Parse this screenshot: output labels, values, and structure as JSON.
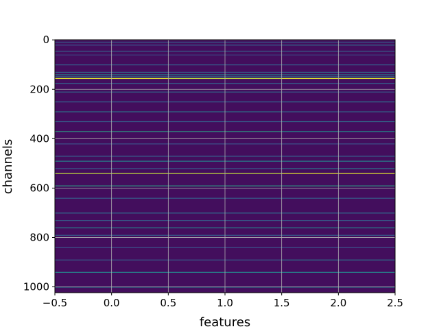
{
  "chart_data": {
    "type": "heatmap",
    "title": "",
    "xlabel": "features",
    "ylabel": "channels",
    "xlim": [
      -0.5,
      2.5
    ],
    "ylim": [
      1023.5,
      -0.5
    ],
    "y_inverted": true,
    "grid": true,
    "colormap": "viridis",
    "n_rows": 1024,
    "n_cols": 3,
    "x_ticks": [
      {
        "value": -0.5,
        "label": "−0.5"
      },
      {
        "value": 0.0,
        "label": "0.0"
      },
      {
        "value": 0.5,
        "label": "0.5"
      },
      {
        "value": 1.0,
        "label": "1.0"
      },
      {
        "value": 1.5,
        "label": "1.5"
      },
      {
        "value": 2.0,
        "label": "2.0"
      },
      {
        "value": 2.5,
        "label": "2.5"
      }
    ],
    "y_ticks": [
      {
        "value": 0,
        "label": "0"
      },
      {
        "value": 200,
        "label": "200"
      },
      {
        "value": 400,
        "label": "400"
      },
      {
        "value": 600,
        "label": "600"
      },
      {
        "value": 800,
        "label": "800"
      },
      {
        "value": 1000,
        "label": "1000"
      }
    ],
    "background_value": 0.04,
    "highlighted_rows": [
      {
        "row": 8,
        "values": [
          0.3,
          0.3,
          0.3
        ]
      },
      {
        "row": 20,
        "values": [
          0.25,
          0.3,
          0.35
        ]
      },
      {
        "row": 45,
        "values": [
          0.3,
          0.3,
          0.3
        ]
      },
      {
        "row": 60,
        "values": [
          0.2,
          0.2,
          0.2
        ]
      },
      {
        "row": 100,
        "values": [
          0.3,
          0.3,
          0.3
        ]
      },
      {
        "row": 130,
        "values": [
          0.35,
          0.3,
          0.35
        ]
      },
      {
        "row": 140,
        "values": [
          0.5,
          0.5,
          0.45
        ]
      },
      {
        "row": 148,
        "values": [
          0.4,
          0.4,
          0.4
        ]
      },
      {
        "row": 155,
        "values": [
          0.95,
          0.9,
          0.95
        ]
      },
      {
        "row": 175,
        "values": [
          0.3,
          0.3,
          0.3
        ]
      },
      {
        "row": 210,
        "values": [
          0.35,
          0.35,
          0.3
        ]
      },
      {
        "row": 250,
        "values": [
          0.3,
          0.3,
          0.35
        ]
      },
      {
        "row": 290,
        "values": [
          0.4,
          0.4,
          0.35
        ]
      },
      {
        "row": 330,
        "values": [
          0.3,
          0.3,
          0.35
        ]
      },
      {
        "row": 370,
        "values": [
          0.55,
          0.55,
          0.5
        ]
      },
      {
        "row": 420,
        "values": [
          0.25,
          0.25,
          0.25
        ]
      },
      {
        "row": 470,
        "values": [
          0.3,
          0.3,
          0.3
        ]
      },
      {
        "row": 490,
        "values": [
          0.45,
          0.45,
          0.45
        ]
      },
      {
        "row": 520,
        "values": [
          0.3,
          0.3,
          0.4
        ]
      },
      {
        "row": 540,
        "values": [
          0.9,
          0.9,
          0.95
        ]
      },
      {
        "row": 590,
        "values": [
          0.55,
          0.55,
          0.55
        ]
      },
      {
        "row": 640,
        "values": [
          0.3,
          0.3,
          0.3
        ]
      },
      {
        "row": 700,
        "values": [
          0.35,
          0.35,
          0.35
        ]
      },
      {
        "row": 730,
        "values": [
          0.3,
          0.3,
          0.3
        ]
      },
      {
        "row": 760,
        "values": [
          0.45,
          0.45,
          0.45
        ]
      },
      {
        "row": 790,
        "values": [
          0.3,
          0.3,
          0.3
        ]
      },
      {
        "row": 840,
        "values": [
          0.25,
          0.25,
          0.25
        ]
      },
      {
        "row": 890,
        "values": [
          0.3,
          0.3,
          0.4
        ]
      },
      {
        "row": 940,
        "values": [
          0.45,
          0.45,
          0.45
        ]
      },
      {
        "row": 1000,
        "values": [
          0.4,
          0.4,
          0.4
        ]
      }
    ]
  }
}
